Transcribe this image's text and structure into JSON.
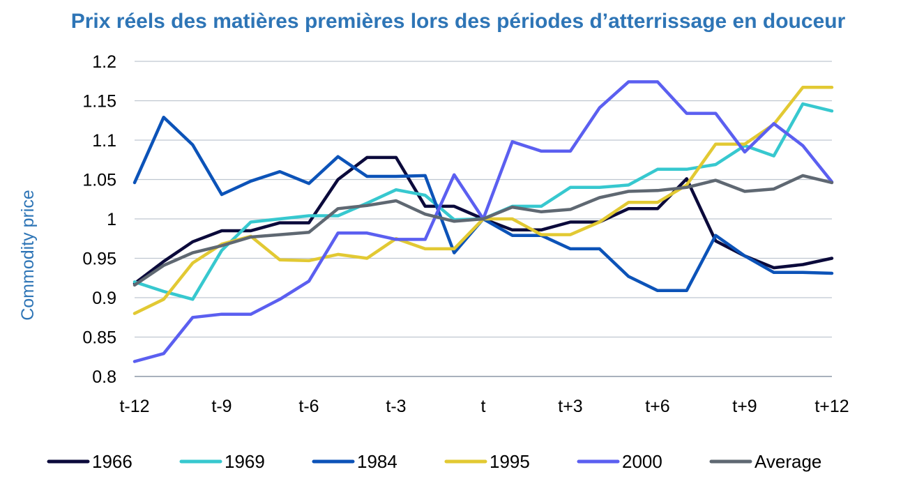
{
  "chart_data": {
    "type": "line",
    "title": "Prix réels des matières premières lors des périodes d’atterrissage en douceur",
    "ylabel": "Commodity price",
    "xlabel": "",
    "x_tick_labels": [
      "t-12",
      "t-9",
      "t-6",
      "t-3",
      "t",
      "t+3",
      "t+6",
      "t+9",
      "t+12"
    ],
    "y_tick_labels": [
      "0.8",
      "0.85",
      "0.9",
      "0.95",
      "1",
      "1.05",
      "1.1",
      "1.15",
      "1.2"
    ],
    "x": [
      -12,
      -11,
      -10,
      -9,
      -8,
      -7,
      -6,
      -5,
      -4,
      -3,
      -2,
      -1,
      0,
      1,
      2,
      3,
      4,
      5,
      6,
      7,
      8,
      9,
      10,
      11,
      12
    ],
    "ylim": [
      0.8,
      1.2
    ],
    "grid": true,
    "legend_position": "bottom",
    "series": [
      {
        "name": "1966",
        "color": "#0b0a3b",
        "values": [
          0.918,
          0.946,
          0.971,
          0.985,
          0.985,
          0.995,
          0.995,
          1.05,
          1.078,
          1.078,
          1.016,
          1.016,
          1.0,
          0.986,
          0.986,
          0.996,
          0.996,
          1.013,
          1.013,
          1.051,
          0.972,
          0.953,
          0.938,
          0.942,
          0.95
        ]
      },
      {
        "name": "1969",
        "color": "#37c8cf",
        "values": [
          0.92,
          0.908,
          0.898,
          0.96,
          0.996,
          1.0,
          1.004,
          1.004,
          1.02,
          1.037,
          1.03,
          0.999,
          1.0,
          1.016,
          1.016,
          1.04,
          1.04,
          1.043,
          1.063,
          1.063,
          1.069,
          1.093,
          1.08,
          1.146,
          1.137
        ]
      },
      {
        "name": "1984",
        "color": "#0c53b8",
        "values": [
          1.046,
          1.129,
          1.094,
          1.031,
          1.048,
          1.06,
          1.045,
          1.079,
          1.054,
          1.054,
          1.055,
          0.957,
          1.0,
          0.979,
          0.979,
          0.962,
          0.962,
          0.927,
          0.909,
          0.909,
          0.979,
          0.953,
          0.932,
          0.932,
          0.931
        ]
      },
      {
        "name": "1995",
        "color": "#e2c933",
        "values": [
          0.88,
          0.898,
          0.944,
          0.968,
          0.978,
          0.948,
          0.947,
          0.955,
          0.95,
          0.975,
          0.962,
          0.962,
          1.0,
          1.0,
          0.98,
          0.98,
          0.996,
          1.021,
          1.021,
          1.043,
          1.095,
          1.095,
          1.12,
          1.167,
          1.167
        ]
      },
      {
        "name": "2000",
        "color": "#5b5ff0",
        "values": [
          0.819,
          0.829,
          0.875,
          0.879,
          0.879,
          0.898,
          0.921,
          0.982,
          0.982,
          0.974,
          0.974,
          1.056,
          1.0,
          1.098,
          1.086,
          1.086,
          1.141,
          1.174,
          1.174,
          1.134,
          1.134,
          1.085,
          1.121,
          1.093,
          1.047
        ]
      },
      {
        "name": "Average",
        "color": "#5f6872",
        "values": [
          0.916,
          0.941,
          0.957,
          0.966,
          0.977,
          0.98,
          0.983,
          1.013,
          1.017,
          1.023,
          1.006,
          0.997,
          1.0,
          1.015,
          1.009,
          1.012,
          1.027,
          1.035,
          1.036,
          1.04,
          1.049,
          1.035,
          1.038,
          1.055,
          1.046
        ]
      }
    ]
  },
  "colors": {
    "title": "#2e75b6",
    "ylabel": "#2e75b6",
    "grid": "#bfc6d0",
    "axis": "#8c97a6"
  }
}
